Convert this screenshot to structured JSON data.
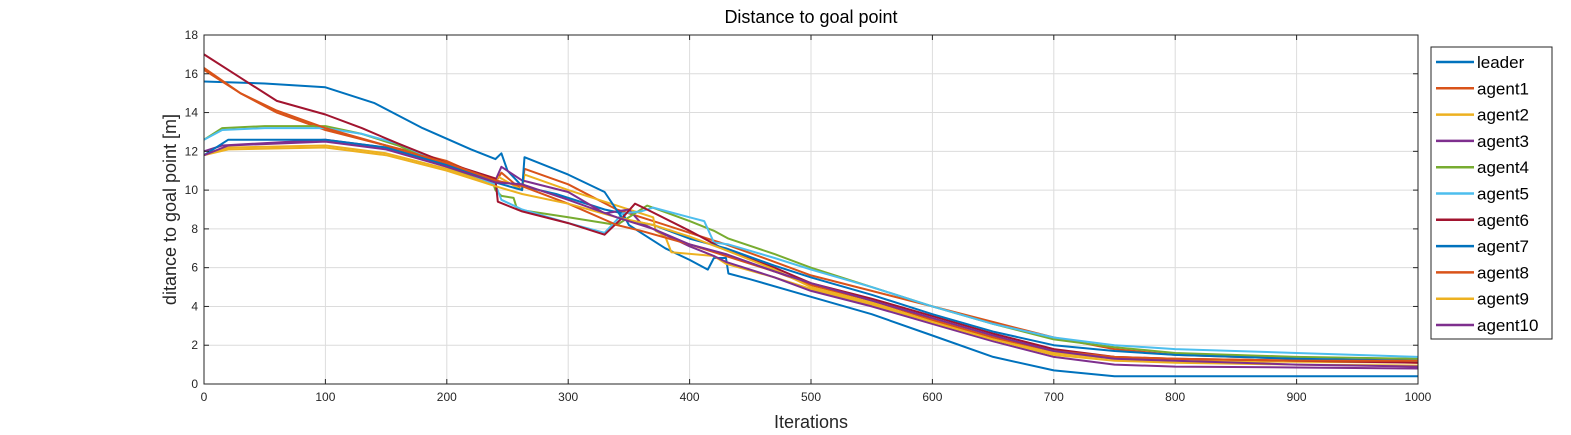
{
  "chart_data": {
    "type": "line",
    "title": "Distance to goal point",
    "xlabel": "Iterations",
    "ylabel": "ditance to goal point [m]",
    "xlim": [
      0,
      1000
    ],
    "ylim": [
      0,
      18
    ],
    "xticks": [
      0,
      100,
      200,
      300,
      400,
      500,
      600,
      700,
      800,
      900,
      1000
    ],
    "yticks": [
      0,
      2,
      4,
      6,
      8,
      10,
      12,
      14,
      16,
      18
    ],
    "grid": true,
    "legend_position": "outside-right",
    "series": [
      {
        "name": "leader",
        "color": "#0072BD",
        "points": [
          [
            0,
            15.6
          ],
          [
            50,
            15.5
          ],
          [
            100,
            15.3
          ],
          [
            140,
            14.5
          ],
          [
            180,
            13.2
          ],
          [
            220,
            12.1
          ],
          [
            240,
            11.6
          ],
          [
            245,
            11.9
          ],
          [
            250,
            11.0
          ],
          [
            262,
            10.2
          ],
          [
            290,
            9.8
          ],
          [
            330,
            9.0
          ],
          [
            345,
            8.8
          ],
          [
            350,
            8.2
          ],
          [
            360,
            7.8
          ],
          [
            380,
            7.0
          ],
          [
            400,
            6.4
          ],
          [
            415,
            5.9
          ],
          [
            420,
            6.5
          ],
          [
            430,
            6.5
          ],
          [
            432,
            5.7
          ],
          [
            450,
            5.4
          ],
          [
            500,
            4.5
          ],
          [
            550,
            3.6
          ],
          [
            600,
            2.5
          ],
          [
            650,
            1.4
          ],
          [
            700,
            0.7
          ],
          [
            750,
            0.4
          ],
          [
            800,
            0.4
          ],
          [
            900,
            0.4
          ],
          [
            1000,
            0.4
          ]
        ]
      },
      {
        "name": "agent1",
        "color": "#D95319",
        "points": [
          [
            0,
            16.3
          ],
          [
            30,
            15.0
          ],
          [
            60,
            14.0
          ],
          [
            100,
            13.1
          ],
          [
            150,
            12.3
          ],
          [
            200,
            11.5
          ],
          [
            240,
            10.4
          ],
          [
            245,
            10.9
          ],
          [
            262,
            10.0
          ],
          [
            264,
            11.1
          ],
          [
            300,
            10.3
          ],
          [
            340,
            9.0
          ],
          [
            370,
            8.4
          ],
          [
            400,
            7.8
          ],
          [
            430,
            7.2
          ],
          [
            470,
            6.3
          ],
          [
            500,
            5.6
          ],
          [
            550,
            4.8
          ],
          [
            600,
            4.0
          ],
          [
            650,
            3.2
          ],
          [
            700,
            2.4
          ],
          [
            750,
            1.8
          ],
          [
            800,
            1.5
          ],
          [
            900,
            1.3
          ],
          [
            1000,
            1.1
          ]
        ]
      },
      {
        "name": "agent2",
        "color": "#EDB120",
        "points": [
          [
            0,
            11.8
          ],
          [
            20,
            12.2
          ],
          [
            100,
            12.3
          ],
          [
            150,
            11.9
          ],
          [
            200,
            11.1
          ],
          [
            240,
            10.3
          ],
          [
            242,
            10.7
          ],
          [
            262,
            10.0
          ],
          [
            264,
            10.8
          ],
          [
            300,
            10.0
          ],
          [
            340,
            9.2
          ],
          [
            370,
            8.6
          ],
          [
            372,
            7.9
          ],
          [
            380,
            7.6
          ],
          [
            385,
            6.8
          ],
          [
            420,
            6.6
          ],
          [
            430,
            6.2
          ],
          [
            470,
            5.5
          ],
          [
            500,
            4.9
          ],
          [
            550,
            4.1
          ],
          [
            600,
            3.2
          ],
          [
            650,
            2.3
          ],
          [
            700,
            1.6
          ],
          [
            750,
            1.3
          ],
          [
            800,
            1.2
          ],
          [
            900,
            1.15
          ],
          [
            1000,
            1.1
          ]
        ]
      },
      {
        "name": "agent3",
        "color": "#7E2F8E",
        "points": [
          [
            0,
            12.0
          ],
          [
            15,
            12.3
          ],
          [
            100,
            12.6
          ],
          [
            150,
            12.2
          ],
          [
            200,
            11.3
          ],
          [
            240,
            10.5
          ],
          [
            245,
            11.2
          ],
          [
            262,
            10.5
          ],
          [
            300,
            9.9
          ],
          [
            330,
            8.8
          ],
          [
            350,
            9.0
          ],
          [
            360,
            8.3
          ],
          [
            400,
            7.1
          ],
          [
            420,
            6.6
          ],
          [
            430,
            6.3
          ],
          [
            470,
            5.5
          ],
          [
            500,
            4.8
          ],
          [
            550,
            4.0
          ],
          [
            600,
            3.1
          ],
          [
            650,
            2.2
          ],
          [
            700,
            1.4
          ],
          [
            750,
            1.0
          ],
          [
            800,
            0.9
          ],
          [
            900,
            0.85
          ],
          [
            1000,
            0.8
          ]
        ]
      },
      {
        "name": "agent4",
        "color": "#77AC30",
        "points": [
          [
            0,
            12.6
          ],
          [
            15,
            13.2
          ],
          [
            50,
            13.3
          ],
          [
            100,
            13.3
          ],
          [
            130,
            12.9
          ],
          [
            160,
            12.3
          ],
          [
            200,
            11.2
          ],
          [
            238,
            10.4
          ],
          [
            240,
            10.0
          ],
          [
            245,
            9.7
          ],
          [
            255,
            9.6
          ],
          [
            258,
            9.0
          ],
          [
            300,
            8.6
          ],
          [
            340,
            8.2
          ],
          [
            365,
            9.2
          ],
          [
            400,
            8.4
          ],
          [
            420,
            7.9
          ],
          [
            432,
            7.5
          ],
          [
            470,
            6.7
          ],
          [
            500,
            6.0
          ],
          [
            550,
            5.0
          ],
          [
            600,
            4.0
          ],
          [
            650,
            3.1
          ],
          [
            700,
            2.3
          ],
          [
            750,
            1.9
          ],
          [
            800,
            1.6
          ],
          [
            900,
            1.4
          ],
          [
            1000,
            1.3
          ]
        ]
      },
      {
        "name": "agent5",
        "color": "#4DBEEE",
        "points": [
          [
            0,
            12.6
          ],
          [
            15,
            13.1
          ],
          [
            50,
            13.2
          ],
          [
            100,
            13.2
          ],
          [
            130,
            12.9
          ],
          [
            160,
            12.4
          ],
          [
            200,
            11.3
          ],
          [
            240,
            10.3
          ],
          [
            245,
            9.5
          ],
          [
            262,
            9.0
          ],
          [
            300,
            8.3
          ],
          [
            330,
            7.8
          ],
          [
            345,
            8.8
          ],
          [
            360,
            8.9
          ],
          [
            370,
            9.1
          ],
          [
            400,
            8.6
          ],
          [
            412,
            8.4
          ],
          [
            420,
            7.3
          ],
          [
            432,
            7.2
          ],
          [
            470,
            6.5
          ],
          [
            500,
            5.9
          ],
          [
            550,
            5.0
          ],
          [
            600,
            4.0
          ],
          [
            650,
            3.1
          ],
          [
            700,
            2.4
          ],
          [
            750,
            2.0
          ],
          [
            800,
            1.8
          ],
          [
            900,
            1.6
          ],
          [
            1000,
            1.4
          ]
        ]
      },
      {
        "name": "agent6",
        "color": "#A2142F",
        "points": [
          [
            0,
            17.0
          ],
          [
            30,
            15.8
          ],
          [
            60,
            14.6
          ],
          [
            100,
            13.9
          ],
          [
            130,
            13.2
          ],
          [
            160,
            12.4
          ],
          [
            200,
            11.4
          ],
          [
            240,
            10.6
          ],
          [
            242,
            9.4
          ],
          [
            262,
            8.9
          ],
          [
            300,
            8.3
          ],
          [
            330,
            7.7
          ],
          [
            345,
            8.6
          ],
          [
            355,
            9.3
          ],
          [
            365,
            9.0
          ],
          [
            400,
            7.9
          ],
          [
            430,
            6.9
          ],
          [
            470,
            6.0
          ],
          [
            500,
            5.2
          ],
          [
            550,
            4.4
          ],
          [
            600,
            3.5
          ],
          [
            650,
            2.6
          ],
          [
            700,
            1.8
          ],
          [
            750,
            1.4
          ],
          [
            800,
            1.3
          ],
          [
            900,
            1.2
          ],
          [
            1000,
            1.1
          ]
        ]
      },
      {
        "name": "agent7",
        "color": "#0072BD",
        "points": [
          [
            0,
            11.8
          ],
          [
            20,
            12.6
          ],
          [
            100,
            12.6
          ],
          [
            150,
            12.2
          ],
          [
            200,
            11.3
          ],
          [
            240,
            10.4
          ],
          [
            262,
            10.0
          ],
          [
            264,
            11.7
          ],
          [
            300,
            10.8
          ],
          [
            330,
            9.9
          ],
          [
            345,
            8.5
          ],
          [
            370,
            8.2
          ],
          [
            400,
            7.5
          ],
          [
            430,
            7.0
          ],
          [
            470,
            6.1
          ],
          [
            500,
            5.5
          ],
          [
            550,
            4.6
          ],
          [
            600,
            3.6
          ],
          [
            650,
            2.7
          ],
          [
            700,
            2.0
          ],
          [
            750,
            1.7
          ],
          [
            800,
            1.5
          ],
          [
            900,
            1.3
          ],
          [
            1000,
            1.2
          ]
        ]
      },
      {
        "name": "agent8",
        "color": "#D95319",
        "points": [
          [
            0,
            16.2
          ],
          [
            30,
            15.0
          ],
          [
            60,
            14.1
          ],
          [
            100,
            13.2
          ],
          [
            150,
            12.3
          ],
          [
            200,
            11.4
          ],
          [
            240,
            10.5
          ],
          [
            262,
            10.2
          ],
          [
            300,
            9.3
          ],
          [
            340,
            8.2
          ],
          [
            360,
            7.9
          ],
          [
            400,
            7.2
          ],
          [
            430,
            6.6
          ],
          [
            470,
            5.8
          ],
          [
            500,
            5.1
          ],
          [
            550,
            4.3
          ],
          [
            600,
            3.3
          ],
          [
            650,
            2.4
          ],
          [
            700,
            1.7
          ],
          [
            750,
            1.4
          ],
          [
            800,
            1.3
          ],
          [
            900,
            1.2
          ],
          [
            1000,
            1.2
          ]
        ]
      },
      {
        "name": "agent9",
        "color": "#EDB120",
        "points": [
          [
            0,
            11.8
          ],
          [
            20,
            12.1
          ],
          [
            100,
            12.2
          ],
          [
            150,
            11.8
          ],
          [
            200,
            11.0
          ],
          [
            240,
            10.2
          ],
          [
            262,
            9.8
          ],
          [
            300,
            9.3
          ],
          [
            340,
            8.6
          ],
          [
            370,
            8.2
          ],
          [
            400,
            7.6
          ],
          [
            430,
            6.9
          ],
          [
            470,
            5.9
          ],
          [
            500,
            5.0
          ],
          [
            550,
            4.2
          ],
          [
            600,
            3.2
          ],
          [
            650,
            2.3
          ],
          [
            700,
            1.5
          ],
          [
            750,
            1.2
          ],
          [
            800,
            1.1
          ],
          [
            900,
            1.0
          ],
          [
            1000,
            0.95
          ]
        ]
      },
      {
        "name": "agent10",
        "color": "#7E2F8E",
        "points": [
          [
            0,
            11.8
          ],
          [
            20,
            12.3
          ],
          [
            100,
            12.5
          ],
          [
            150,
            12.1
          ],
          [
            200,
            11.2
          ],
          [
            240,
            10.4
          ],
          [
            262,
            10.3
          ],
          [
            300,
            9.5
          ],
          [
            340,
            8.6
          ],
          [
            370,
            8.0
          ],
          [
            400,
            7.2
          ],
          [
            430,
            6.7
          ],
          [
            470,
            5.8
          ],
          [
            500,
            5.2
          ],
          [
            550,
            4.3
          ],
          [
            600,
            3.4
          ],
          [
            650,
            2.5
          ],
          [
            700,
            1.7
          ],
          [
            750,
            1.3
          ],
          [
            800,
            1.2
          ],
          [
            900,
            1.0
          ],
          [
            1000,
            0.9
          ]
        ]
      }
    ]
  }
}
